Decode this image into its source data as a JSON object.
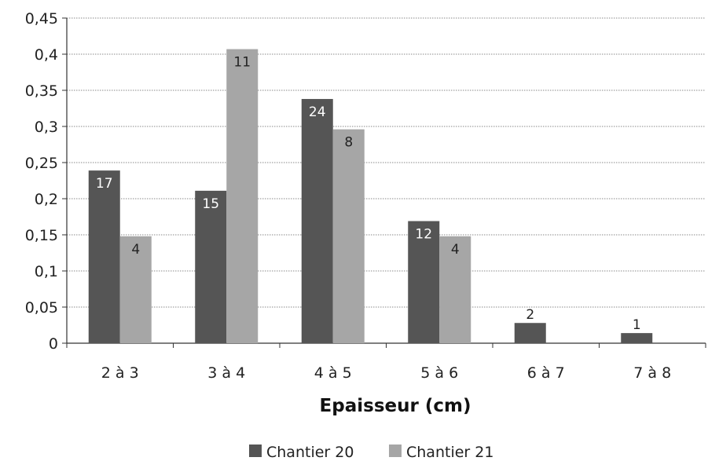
{
  "chart_data": {
    "type": "bar",
    "title": "",
    "xlabel": "Epaisseur (cm)",
    "ylabel": "",
    "ylim": [
      0,
      0.45
    ],
    "yticks": [
      "0",
      "0,05",
      "0,1",
      "0,15",
      "0,2",
      "0,25",
      "0,3",
      "0,35",
      "0,4",
      "0,45"
    ],
    "grid": true,
    "legend_position": "bottom",
    "categories": [
      "2 à 3",
      "3 à 4",
      "4 à 5",
      "5 à 6",
      "6 à 7",
      "7 à 8"
    ],
    "series": [
      {
        "name": "Chantier 20",
        "color": "#555555",
        "values": [
          0.239,
          0.211,
          0.338,
          0.169,
          0.028,
          0.014
        ],
        "labels": [
          "17",
          "15",
          "24",
          "12",
          "2",
          "1"
        ]
      },
      {
        "name": "Chantier 21",
        "color": "#a6a6a6",
        "values": [
          0.148,
          0.407,
          0.296,
          0.148,
          null,
          null
        ],
        "labels": [
          "4",
          "11",
          "8",
          "4",
          "",
          ""
        ]
      }
    ]
  }
}
